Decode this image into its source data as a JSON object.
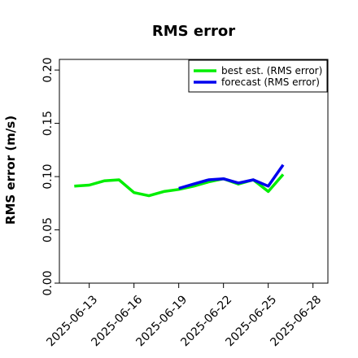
{
  "chart_data": {
    "type": "line",
    "title": "RMS error",
    "xlabel": "",
    "ylabel": "RMS error (m/s)",
    "ylim": [
      0.0,
      0.21
    ],
    "yticks": [
      "0.00",
      "0.05",
      "0.10",
      "0.15",
      "0.20"
    ],
    "ytick_values": [
      0.0,
      0.05,
      0.1,
      0.15,
      0.2
    ],
    "xlim": [
      "2025-06-11",
      "2025-06-29"
    ],
    "xticks": [
      "2025-06-13",
      "2025-06-16",
      "2025-06-19",
      "2025-06-22",
      "2025-06-25",
      "2025-06-28"
    ],
    "highlight_xtick": "2025-06-19",
    "highlight_color": "#2e8b2e",
    "grid": false,
    "legend_position": "top-right",
    "series": [
      {
        "name": "best est. (RMS error)",
        "color": "#00ee00",
        "x": [
          "2025-06-12",
          "2025-06-13",
          "2025-06-14",
          "2025-06-15",
          "2025-06-16",
          "2025-06-17",
          "2025-06-18",
          "2025-06-19",
          "2025-06-20",
          "2025-06-21",
          "2025-06-22",
          "2025-06-23",
          "2025-06-24",
          "2025-06-25",
          "2025-06-26"
        ],
        "values": [
          0.091,
          0.092,
          0.096,
          0.097,
          0.085,
          0.082,
          0.086,
          0.088,
          0.091,
          0.095,
          0.098,
          0.093,
          0.097,
          0.086,
          0.102
        ]
      },
      {
        "name": "forecast (RMS error)",
        "color": "#0000ee",
        "x": [
          "2025-06-19",
          "2025-06-20",
          "2025-06-21",
          "2025-06-22",
          "2025-06-23",
          "2025-06-24",
          "2025-06-25",
          "2025-06-26"
        ],
        "values": [
          0.089,
          0.093,
          0.097,
          0.098,
          0.094,
          0.097,
          0.091,
          0.111
        ]
      }
    ]
  }
}
